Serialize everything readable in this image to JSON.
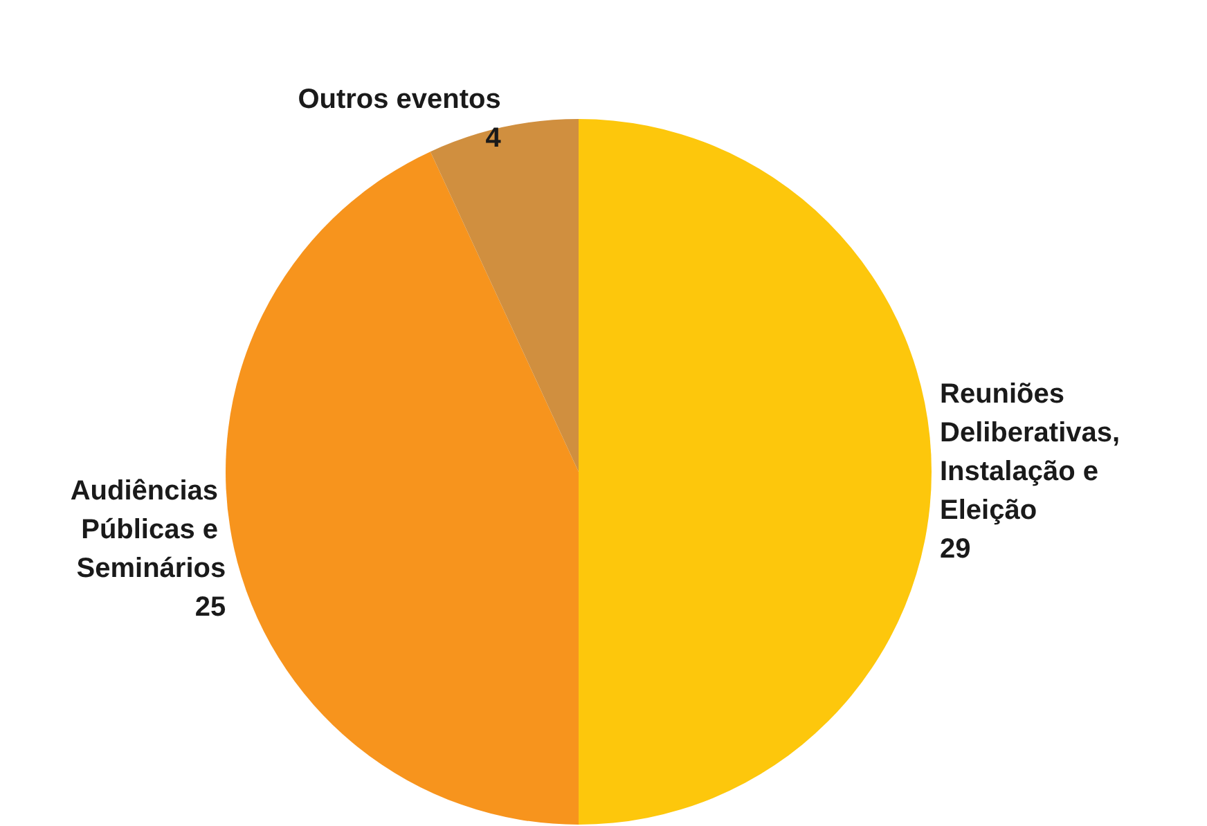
{
  "chart_data": {
    "type": "pie",
    "categories": [
      "Reuniões Deliberativas, Instalação e Eleição",
      "Audiências Públicas e Seminários",
      "Outros eventos"
    ],
    "values": [
      29,
      25,
      4
    ],
    "colors": [
      "#fdc70c",
      "#f7941d",
      "#d08f3f"
    ],
    "data_labels": true
  }
}
